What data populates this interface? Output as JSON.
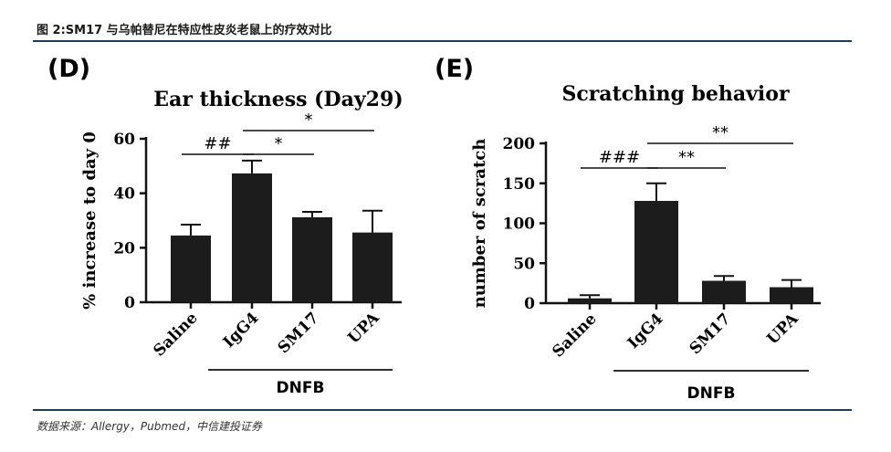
{
  "header": {
    "title": "图 2:SM17 与乌帕替尼在特应性皮炎老鼠上的疗效对比"
  },
  "footer": {
    "source": "数据来源：Allergy，Pubmed，中信建投证券"
  },
  "chart_data": [
    {
      "type": "bar",
      "panel": "(D)",
      "title": "Ear thickness (Day29)",
      "ylabel": "% increase to day 0",
      "xlabel": "",
      "categories": [
        "Saline",
        "IgG4",
        "SM17",
        "UPA"
      ],
      "values": [
        24.5,
        47.3,
        31.2,
        25.6
      ],
      "errors": [
        4.0,
        4.7,
        2.0,
        8.0
      ],
      "ylim": [
        0,
        60
      ],
      "yticks": [
        0,
        20,
        40,
        60
      ],
      "yticklabels": [
        "0",
        "20",
        "40",
        "60"
      ],
      "group_label": "DNFB",
      "group_categories": [
        1,
        3
      ],
      "significance": [
        {
          "from": 0,
          "to": 1,
          "label": "##"
        },
        {
          "from": 1,
          "to": 2,
          "label": "*"
        },
        {
          "from": 1,
          "to": 3,
          "label": "*"
        }
      ]
    },
    {
      "type": "bar",
      "panel": "(E)",
      "title": "Scratching behavior",
      "ylabel": "number of scratch",
      "xlabel": "",
      "categories": [
        "Saline",
        "IgG4",
        "SM17",
        "UPA"
      ],
      "values": [
        6,
        128,
        28,
        20
      ],
      "errors": [
        4,
        22,
        6,
        9
      ],
      "ylim": [
        0,
        200
      ],
      "yticks": [
        0,
        50,
        100,
        150,
        200
      ],
      "yticklabels": [
        "0",
        "50",
        "100",
        "150",
        "200"
      ],
      "group_label": "DNFB",
      "group_categories": [
        1,
        3
      ],
      "significance": [
        {
          "from": 0,
          "to": 1,
          "label": "###"
        },
        {
          "from": 1,
          "to": 2,
          "label": "**"
        },
        {
          "from": 1,
          "to": 3,
          "label": "**"
        }
      ]
    }
  ]
}
